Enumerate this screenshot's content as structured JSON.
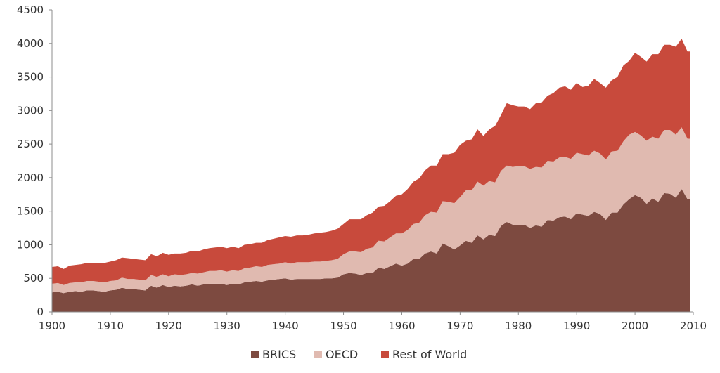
{
  "chart_data": {
    "type": "area",
    "stacked": true,
    "x": [
      1900,
      1901,
      1902,
      1903,
      1904,
      1905,
      1906,
      1907,
      1908,
      1909,
      1910,
      1911,
      1912,
      1913,
      1914,
      1915,
      1916,
      1917,
      1918,
      1919,
      1920,
      1921,
      1922,
      1923,
      1924,
      1925,
      1926,
      1927,
      1928,
      1929,
      1930,
      1931,
      1932,
      1933,
      1934,
      1935,
      1936,
      1937,
      1938,
      1939,
      1940,
      1941,
      1942,
      1943,
      1944,
      1945,
      1946,
      1947,
      1948,
      1949,
      1950,
      1951,
      1952,
      1953,
      1954,
      1955,
      1956,
      1957,
      1958,
      1959,
      1960,
      1961,
      1962,
      1963,
      1964,
      1965,
      1966,
      1967,
      1968,
      1969,
      1970,
      1971,
      1972,
      1973,
      1974,
      1975,
      1976,
      1977,
      1978,
      1979,
      1980,
      1981,
      1982,
      1983,
      1984,
      1985,
      1986,
      1987,
      1988,
      1989,
      1990,
      1991,
      1992,
      1993,
      1994,
      1995,
      1996,
      1997,
      1998,
      1999,
      2000,
      2001,
      2002,
      2003,
      2004,
      2005,
      2006,
      2007,
      2008,
      2009
    ],
    "series": [
      {
        "name": "BRICS",
        "color": "#7d4a40",
        "values": [
          290,
          300,
          280,
          300,
          310,
          300,
          320,
          320,
          310,
          300,
          320,
          330,
          360,
          340,
          340,
          330,
          320,
          390,
          360,
          400,
          370,
          390,
          380,
          390,
          410,
          390,
          410,
          420,
          420,
          420,
          400,
          420,
          410,
          440,
          450,
          460,
          450,
          470,
          480,
          490,
          500,
          480,
          490,
          490,
          490,
          490,
          490,
          500,
          500,
          510,
          560,
          580,
          570,
          550,
          580,
          580,
          660,
          640,
          680,
          720,
          690,
          720,
          790,
          790,
          870,
          900,
          870,
          1020,
          980,
          930,
          990,
          1060,
          1030,
          1140,
          1080,
          1150,
          1130,
          1280,
          1340,
          1300,
          1290,
          1300,
          1250,
          1290,
          1270,
          1370,
          1360,
          1410,
          1420,
          1380,
          1470,
          1450,
          1430,
          1490,
          1460,
          1370,
          1480,
          1480,
          1600,
          1680,
          1740,
          1700,
          1610,
          1690,
          1640,
          1770,
          1760,
          1700,
          1830,
          1680
        ]
      },
      {
        "name": "OECD",
        "color": "#e0bab0",
        "values": [
          130,
          130,
          120,
          130,
          130,
          140,
          140,
          140,
          140,
          140,
          140,
          140,
          150,
          150,
          150,
          150,
          150,
          160,
          160,
          160,
          160,
          170,
          170,
          170,
          170,
          180,
          180,
          190,
          190,
          200,
          200,
          200,
          200,
          210,
          210,
          220,
          220,
          230,
          230,
          230,
          240,
          240,
          250,
          250,
          250,
          260,
          260,
          260,
          270,
          280,
          300,
          320,
          330,
          340,
          360,
          380,
          400,
          410,
          430,
          450,
          480,
          500,
          520,
          540,
          570,
          590,
          610,
          630,
          660,
          690,
          720,
          750,
          780,
          800,
          800,
          800,
          800,
          820,
          840,
          860,
          880,
          870,
          880,
          870,
          880,
          880,
          880,
          890,
          890,
          900,
          900,
          900,
          900,
          910,
          900,
          900,
          910,
          920,
          940,
          960,
          940,
          930,
          940,
          920,
          940,
          940,
          950,
          940,
          920,
          900
        ]
      },
      {
        "name": "Rest of World",
        "color": "#c84a3c",
        "values": [
          250,
          250,
          240,
          260,
          260,
          270,
          270,
          270,
          280,
          290,
          290,
          300,
          300,
          310,
          300,
          300,
          300,
          310,
          310,
          320,
          320,
          310,
          320,
          320,
          330,
          330,
          340,
          340,
          350,
          350,
          350,
          350,
          340,
          350,
          350,
          350,
          360,
          370,
          380,
          390,
          390,
          400,
          400,
          400,
          410,
          420,
          430,
          430,
          440,
          450,
          450,
          480,
          480,
          490,
          500,
          520,
          510,
          530,
          540,
          560,
          580,
          610,
          630,
          660,
          670,
          690,
          700,
          700,
          710,
          750,
          780,
          740,
          760,
          780,
          740,
          770,
          840,
          830,
          930,
          920,
          890,
          890,
          890,
          950,
          970,
          970,
          1020,
          1040,
          1050,
          1030,
          1040,
          1000,
          1040,
          1070,
          1050,
          1070,
          1060,
          1100,
          1130,
          1100,
          1180,
          1170,
          1180,
          1230,
          1260,
          1270,
          1270,
          1310,
          1320,
          1300
        ]
      }
    ],
    "xlim": [
      1900,
      2010
    ],
    "ylim": [
      0,
      4500
    ],
    "x_ticks": [
      "1900",
      "1910",
      "1920",
      "1930",
      "1940",
      "1950",
      "1960",
      "1970",
      "1980",
      "1990",
      "2000",
      "2010"
    ],
    "y_ticks": [
      "0",
      "500",
      "1000",
      "1500",
      "2000",
      "2500",
      "3000",
      "3500",
      "4000",
      "4500"
    ],
    "legend": {
      "placement": "bottom",
      "entries": [
        "BRICS",
        "OECD",
        "Rest of World"
      ]
    },
    "title": "",
    "xlabel": "",
    "ylabel": "",
    "grid": false
  }
}
